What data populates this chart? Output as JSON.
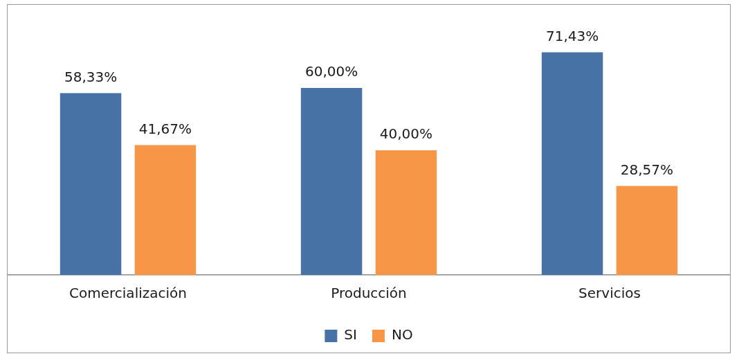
{
  "chart_data": {
    "type": "bar",
    "categories": [
      "Comercialización",
      "Producción",
      "Servicios"
    ],
    "series": [
      {
        "name": "SI",
        "color": "#4672a6",
        "values": [
          58.33,
          60.0,
          71.43
        ],
        "value_labels": [
          "58,33%",
          "60,00%",
          "71,43%"
        ]
      },
      {
        "name": "NO",
        "color": "#f79646",
        "values": [
          41.67,
          40.0,
          28.57
        ],
        "value_labels": [
          "41,67%",
          "40,00%",
          "28,57%"
        ]
      }
    ],
    "legend": "bottom",
    "grid": false
  }
}
